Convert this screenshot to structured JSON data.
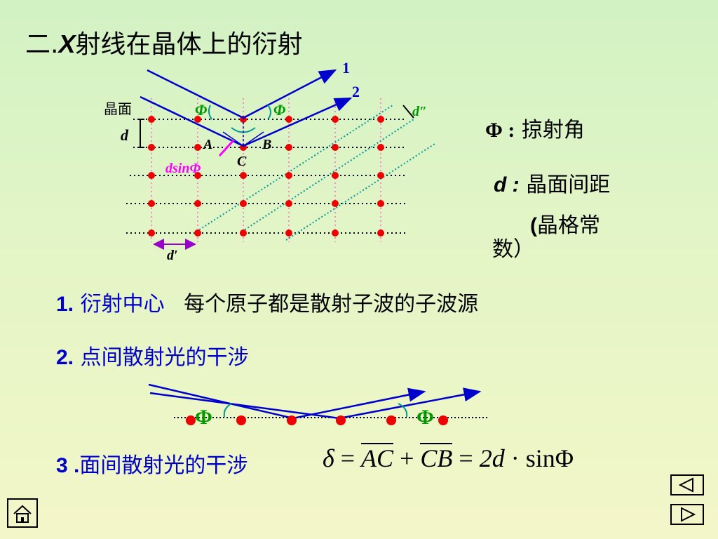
{
  "title": {
    "prefix": "二.",
    "x": "X",
    "rest": "射线在晶体上的衍射"
  },
  "diagram": {
    "ray1": "1",
    "ray2": "2",
    "plane_label": "晶面",
    "d": "d",
    "d_double_prime": "d″",
    "d_prime": "d′",
    "phi": "Φ",
    "point_a": "A",
    "point_b": "B",
    "point_c": "C",
    "dsin": "dsinΦ"
  },
  "legend": {
    "phi_symbol": "Φ :",
    "phi_text": "掠射角",
    "d_symbol": "d :",
    "d_text": "晶面间距",
    "paren_open": "(",
    "lattice_text": "晶格常",
    "lattice_text2": "数）"
  },
  "items": [
    {
      "num": "1.",
      "title": "衍射中心",
      "desc": "每个原子都是散射子波的子波源"
    },
    {
      "num": "2.",
      "title": "点间散射光的干涉"
    },
    {
      "num": "3 .",
      "title": "面间散射光的干涉"
    }
  ],
  "formula": {
    "delta": "δ",
    "eq1": "=",
    "ac": "AC",
    "plus": "+",
    "cb": "CB",
    "eq2": "=",
    "two_d": "2d",
    "dot": "·",
    "sin_phi": "sinΦ"
  },
  "nav": {
    "home": "home-icon",
    "back": "prev-triangle-icon",
    "next": "next-triangle-icon"
  }
}
